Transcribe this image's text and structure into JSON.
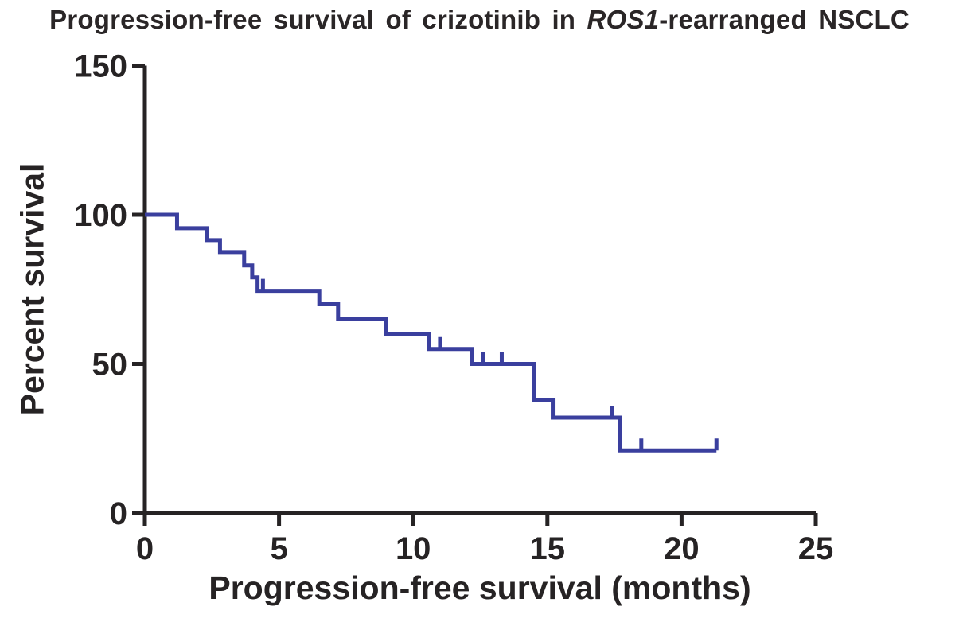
{
  "title": {
    "prefix": "Progression-free survival of crizotinib in ",
    "italic": "ROS1",
    "suffix": "-rearranged NSCLC"
  },
  "colors": {
    "curve": "#3a3f9e",
    "axis": "#262324",
    "text": "#262324",
    "background": "#ffffff"
  },
  "chart_data": {
    "type": "line",
    "subtype": "kaplan-meier-step",
    "title": "Progression-free survival of crizotinib in ROS1-rearranged NSCLC",
    "xlabel": "Progression-free survival (months)",
    "ylabel": "Percent survival",
    "xlim": [
      0,
      25
    ],
    "ylim": [
      0,
      150
    ],
    "x_ticks": [
      0,
      5,
      10,
      15,
      20,
      25
    ],
    "y_ticks": [
      0,
      50,
      100,
      150
    ],
    "grid": false,
    "legend_position": "none",
    "series": [
      {
        "name": "crizotinib",
        "color": "#3a3f9e",
        "start": {
          "t": 0,
          "s": 100
        },
        "steps": [
          {
            "t": 1.2,
            "s": 95.5
          },
          {
            "t": 2.3,
            "s": 91.5
          },
          {
            "t": 2.8,
            "s": 87.5
          },
          {
            "t": 3.7,
            "s": 83.0
          },
          {
            "t": 4.0,
            "s": 79.0
          },
          {
            "t": 4.2,
            "s": 74.5
          },
          {
            "t": 6.5,
            "s": 70.0
          },
          {
            "t": 7.2,
            "s": 65.0
          },
          {
            "t": 9.0,
            "s": 60.0
          },
          {
            "t": 10.6,
            "s": 55.0
          },
          {
            "t": 12.2,
            "s": 50.0
          },
          {
            "t": 14.5,
            "s": 38.0
          },
          {
            "t": 15.2,
            "s": 32.0
          },
          {
            "t": 17.7,
            "s": 21.0
          }
        ],
        "censor_marks": [
          {
            "t": 4.4,
            "s": 74.5
          },
          {
            "t": 11.0,
            "s": 55.0
          },
          {
            "t": 12.6,
            "s": 50.0
          },
          {
            "t": 13.3,
            "s": 50.0
          },
          {
            "t": 17.4,
            "s": 32.0
          },
          {
            "t": 18.5,
            "s": 21.0
          },
          {
            "t": 21.3,
            "s": 21.0
          }
        ],
        "end_time": 21.3
      }
    ]
  }
}
